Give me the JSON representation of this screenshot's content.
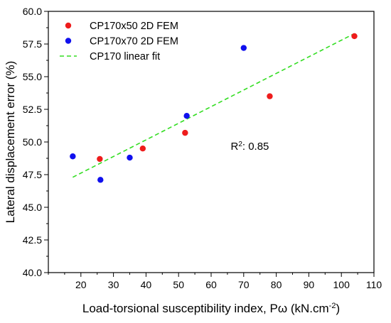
{
  "chart_data": {
    "type": "scatter",
    "title": "",
    "xlabel": "Load-torsional susceptibility index, Pω (kN.cm",
    "xlabel_sup": "-2",
    "xlabel_end": ")",
    "ylabel": "Lateral displacement error (%)",
    "xlim": [
      10,
      110
    ],
    "ylim": [
      40.0,
      60.0
    ],
    "x_ticks": [
      20,
      30,
      40,
      50,
      60,
      70,
      80,
      90,
      100,
      110
    ],
    "y_ticks": [
      40.0,
      42.5,
      45.0,
      47.5,
      50.0,
      52.5,
      55.0,
      57.5,
      60.0
    ],
    "grid": false,
    "legend_position": "top-left",
    "series": [
      {
        "name": "CP170x50 2D FEM",
        "kind": "scatter",
        "color": "#ee1c1c",
        "x": [
          25.8,
          39.0,
          52.0,
          78.0,
          104.0
        ],
        "y": [
          48.7,
          49.5,
          50.7,
          53.5,
          58.1
        ]
      },
      {
        "name": "CP170x70 2D FEM",
        "kind": "scatter",
        "color": "#1010ee",
        "x": [
          17.5,
          26.0,
          35.0,
          52.5,
          70.0
        ],
        "y": [
          48.9,
          47.1,
          48.8,
          52.0,
          57.2
        ]
      },
      {
        "name": "CP170 linear fit",
        "kind": "line",
        "style": "dashed",
        "color": "#33dd22",
        "x": [
          17.5,
          104.0
        ],
        "y": [
          47.3,
          58.3
        ]
      }
    ],
    "annotations": [
      {
        "text_base": "R",
        "text_sup": "2",
        "text_rest": ": 0.85",
        "x": 66,
        "y": 49.4
      }
    ]
  }
}
